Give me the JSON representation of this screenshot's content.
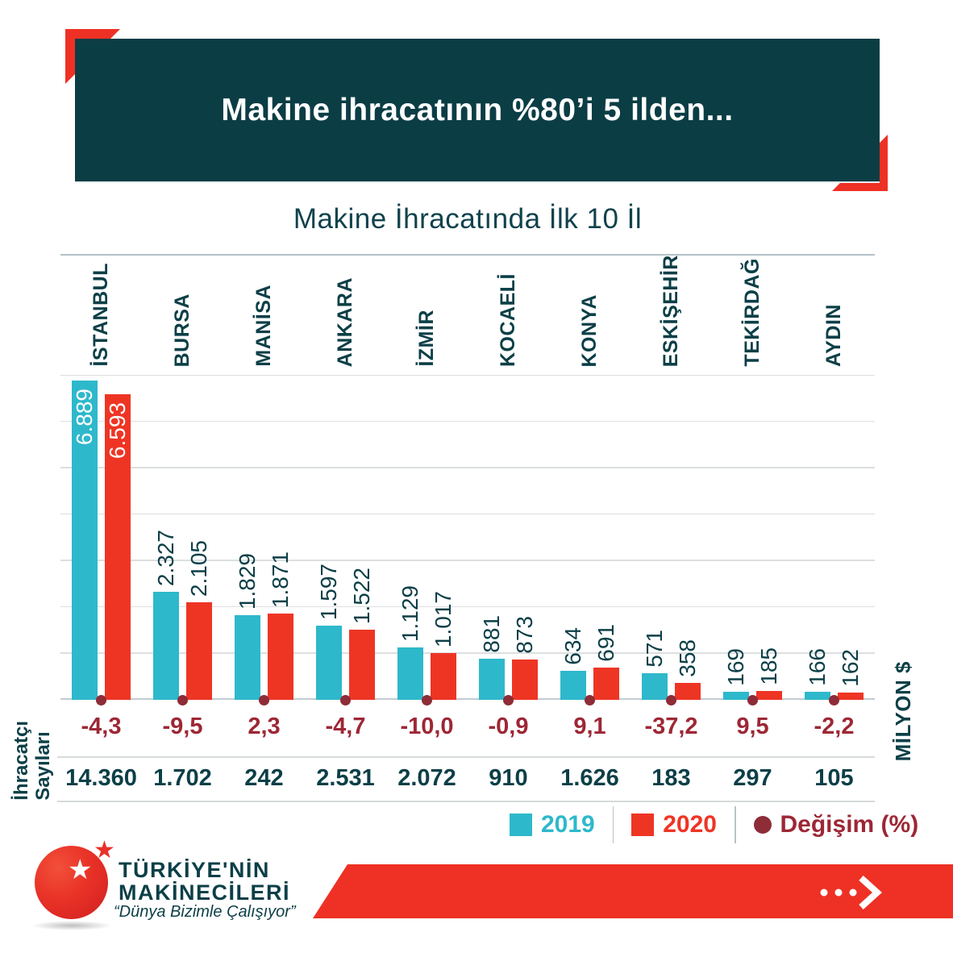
{
  "colors": {
    "header_bg": "#0b3d45",
    "teal_text": "#0c3f47",
    "cyan": "#2eb8cb",
    "red": "#ee3524",
    "banner_red": "#ee3124",
    "dark_red_text": "#9d2735",
    "dark_red_dot": "#8e2c38",
    "gridline": "#dcdfe0"
  },
  "header": {
    "title": "Makine ihracatının %80’i 5 ilden..."
  },
  "subtitle": "Makine İhracatında İlk 10 İl",
  "chart_data": {
    "type": "bar",
    "title": "Makine İhracatında İlk 10 İl",
    "unit_label": "MİLYON $",
    "categories": [
      "İSTANBUL",
      "BURSA",
      "MANİSA",
      "ANKARA",
      "İZMİR",
      "KOCAELİ",
      "KONYA",
      "ESKİŞEHİR",
      "TEKİRDAĞ",
      "AYDIN"
    ],
    "series": [
      {
        "name": "2019",
        "color": "#2eb8cb",
        "values": [
          6889,
          2327,
          1829,
          1597,
          1129,
          881,
          634,
          571,
          169,
          166
        ],
        "labels": [
          "6.889",
          "2.327",
          "1.829",
          "1.597",
          "1.129",
          "881",
          "634",
          "571",
          "169",
          "166"
        ]
      },
      {
        "name": "2020",
        "color": "#ee3524",
        "values": [
          6593,
          2105,
          1871,
          1522,
          1017,
          873,
          691,
          358,
          185,
          162
        ],
        "labels": [
          "6.593",
          "2.105",
          "1.871",
          "1.522",
          "1.017",
          "873",
          "691",
          "358",
          "185",
          "162"
        ]
      }
    ],
    "change_pct": {
      "name": "Değişim (%)",
      "labels": [
        "-4,3",
        "-9,5",
        "2,3",
        "-4,7",
        "-10,0",
        "-0,9",
        "9,1",
        "-37,2",
        "9,5",
        "-2,2"
      ]
    },
    "exporter_counts": {
      "label": "İhracatçı\nSayıları",
      "values": [
        "14.360",
        "1.702",
        "242",
        "2.531",
        "2.072",
        "910",
        "1.626",
        "183",
        "297",
        "105"
      ]
    },
    "ylim": [
      0,
      7000
    ],
    "gridline_step": 1000,
    "grid": true,
    "legend_position": "bottom",
    "bar_value_labels_rotated": true
  },
  "legend": {
    "items": [
      {
        "label": "2019",
        "color": "#2eb8cb",
        "swatch": "square"
      },
      {
        "label": "2020",
        "color": "#ee3524",
        "swatch": "square"
      },
      {
        "label": "Değişim (%)",
        "color": "#9d2735",
        "swatch": "dot"
      }
    ]
  },
  "logo": {
    "line1": "TÜRKİYE'NİN",
    "line2": "MAKİNECİLERİ",
    "tagline": "“Dünya Bizimle Çalışıyor”",
    "star_glyph": "★"
  }
}
